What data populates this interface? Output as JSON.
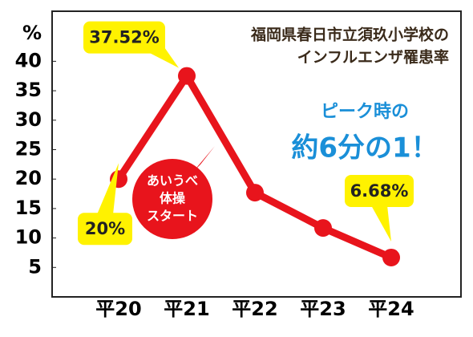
{
  "chart_data": {
    "type": "line",
    "title": [
      "福岡県春日市立須玖小学校の",
      "インフルエンザ罹患率"
    ],
    "y_label": "%",
    "categories": [
      "平20",
      "平21",
      "平22",
      "平23",
      "平24"
    ],
    "values": [
      20,
      37.52,
      17.7,
      11.7,
      6.68
    ],
    "value_labels": [
      "20%",
      "37.52%",
      null,
      null,
      "6.68%"
    ],
    "color": "#e8141c",
    "ylim": [
      0,
      48.5
    ],
    "yticks": [
      5,
      10,
      15,
      20,
      25,
      30,
      35,
      40
    ],
    "annotations": [
      "ピーク時の",
      "約6分の1！",
      "あいうべ",
      "体操",
      "スタート"
    ]
  }
}
